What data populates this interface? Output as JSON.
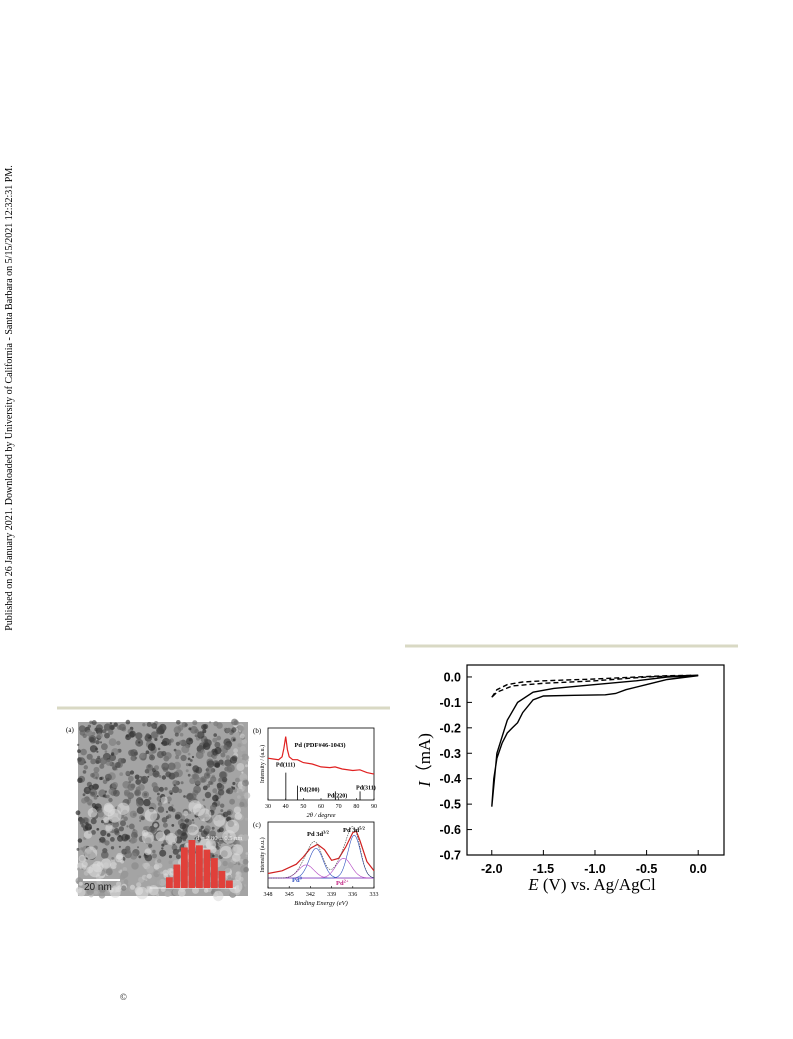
{
  "sidebar": "Published on 26 January 2021. Downloaded by University of California - Santa Barbara on 5/15/2021 12:32:31 PM.",
  "copyright": "©",
  "figure_left": {
    "panel_a": {
      "label": "(a)",
      "scale_bar": "20 nm",
      "size_label": "d = 2.80 ± 0.5 nm",
      "histogram": {
        "values": [
          10,
          22,
          38,
          45,
          40,
          36,
          28,
          16,
          7
        ],
        "color": "#e0403a",
        "ylim": [
          0,
          45
        ]
      }
    },
    "panel_b": {
      "label": "(b)",
      "y_label": "Intensity / (a.u.)",
      "x_label": "2θ / degree",
      "xlim": [
        30,
        90
      ],
      "xticks": [
        30,
        40,
        50,
        60,
        70,
        80,
        90
      ],
      "ylim": [
        0,
        1
      ],
      "reference": "Pd (PDF#46-1043)",
      "series": {
        "color": "#e02020",
        "x": [
          30,
          33,
          36,
          38,
          39,
          40,
          41,
          42,
          44,
          46.7,
          50,
          55,
          60,
          65,
          68,
          72,
          78,
          82,
          86,
          90
        ],
        "y": [
          0.58,
          0.57,
          0.56,
          0.6,
          0.72,
          0.88,
          0.7,
          0.6,
          0.56,
          0.56,
          0.52,
          0.5,
          0.46,
          0.45,
          0.46,
          0.43,
          0.41,
          0.42,
          0.38,
          0.36
        ]
      },
      "ref_lines": [
        {
          "x": 40.1,
          "height": 0.38,
          "label": "Pd(111)"
        },
        {
          "x": 46.7,
          "height": 0.2,
          "label": "Pd(200)"
        },
        {
          "x": 68.1,
          "height": 0.12,
          "label": "Pd(220)"
        },
        {
          "x": 82.1,
          "height": 0.12,
          "label": "Pd(311)"
        }
      ]
    },
    "panel_c": {
      "label": "(c)",
      "y_label": "Intensity (a.u.)",
      "x_label": "Binding Energy (eV)",
      "xlim": [
        348,
        333
      ],
      "xticks": [
        348,
        345,
        342,
        339,
        336,
        333
      ],
      "ylim": [
        0,
        1
      ],
      "baseline": 0.15,
      "series": {
        "color": "#d02020",
        "x": [
          348,
          346,
          344,
          343,
          342,
          341,
          340,
          339,
          338,
          337,
          336,
          335.5,
          335,
          334,
          333
        ],
        "y": [
          0.22,
          0.26,
          0.36,
          0.47,
          0.6,
          0.66,
          0.58,
          0.42,
          0.45,
          0.62,
          0.84,
          0.86,
          0.72,
          0.4,
          0.26
        ]
      },
      "peaks": [
        {
          "center": 341.2,
          "height": 0.45,
          "width": 1.0,
          "color": "#3050c0"
        },
        {
          "center": 342.6,
          "height": 0.2,
          "width": 1.1,
          "color": "#b040c0"
        },
        {
          "center": 335.8,
          "height": 0.65,
          "width": 0.9,
          "color": "#3050c0"
        },
        {
          "center": 337.3,
          "height": 0.3,
          "width": 1.1,
          "color": "#b040c0"
        }
      ],
      "annotations": [
        {
          "text": "Pd 3d",
          "sup": "3/2",
          "color": "#000000"
        },
        {
          "text": "Pd 3d",
          "sup": "5/2",
          "color": "#000000"
        },
        {
          "text": "Pd",
          "sup": "0",
          "color": "#3050c0"
        },
        {
          "text": "Pd",
          "sup": "2+",
          "color": "#c02080"
        }
      ]
    }
  },
  "cv_chart": {
    "type": "line",
    "y_label_var": "I",
    "y_label_rest": "（mA)",
    "x_label_var": "E",
    "x_label_rest": " (V) vs. Ag/AgCl",
    "xlim": [
      -2.24,
      0.25
    ],
    "ylim": [
      -0.7,
      0.047
    ],
    "xticks": [
      {
        "value": -2,
        "label": "-2.0"
      },
      -1.5,
      {
        "value": -1,
        "label": "-1.0"
      },
      -0.5,
      {
        "value": 0,
        "label": "0.0"
      }
    ],
    "yticks": [
      {
        "value": 0,
        "label": "0.0"
      },
      -0.1,
      -0.2,
      -0.3,
      -0.4,
      -0.5,
      -0.6,
      -0.7
    ],
    "series": [
      {
        "style": "solid",
        "color": "#000000",
        "x": [
          -2.0,
          -1.98,
          -1.95,
          -1.9,
          -1.85,
          -1.8,
          -1.75,
          -1.7,
          -1.6,
          -1.5,
          -1.2,
          -0.9,
          -0.8,
          -0.7,
          -0.5,
          -0.3,
          0.0,
          -0.3,
          -0.6,
          -1.0,
          -1.4,
          -1.6,
          -1.75,
          -1.85,
          -1.95,
          -2.0
        ],
        "y": [
          -0.51,
          -0.4,
          -0.32,
          -0.26,
          -0.22,
          -0.2,
          -0.18,
          -0.14,
          -0.09,
          -0.075,
          -0.072,
          -0.07,
          -0.065,
          -0.05,
          -0.03,
          -0.01,
          0.005,
          0.0,
          -0.015,
          -0.03,
          -0.045,
          -0.06,
          -0.1,
          -0.17,
          -0.3,
          -0.51
        ]
      },
      {
        "style": "dashed",
        "color": "#000000",
        "x": [
          -2.0,
          -1.95,
          -1.85,
          -1.7,
          -1.5,
          -1.0,
          -0.6,
          -0.3,
          0.0,
          -0.5,
          -1.0,
          -1.5,
          -1.8,
          -1.95,
          -2.0
        ],
        "y": [
          -0.08,
          -0.05,
          -0.03,
          -0.02,
          -0.015,
          -0.008,
          0.0,
          0.005,
          0.007,
          0.0,
          -0.015,
          -0.025,
          -0.035,
          -0.06,
          -0.08
        ]
      }
    ]
  }
}
